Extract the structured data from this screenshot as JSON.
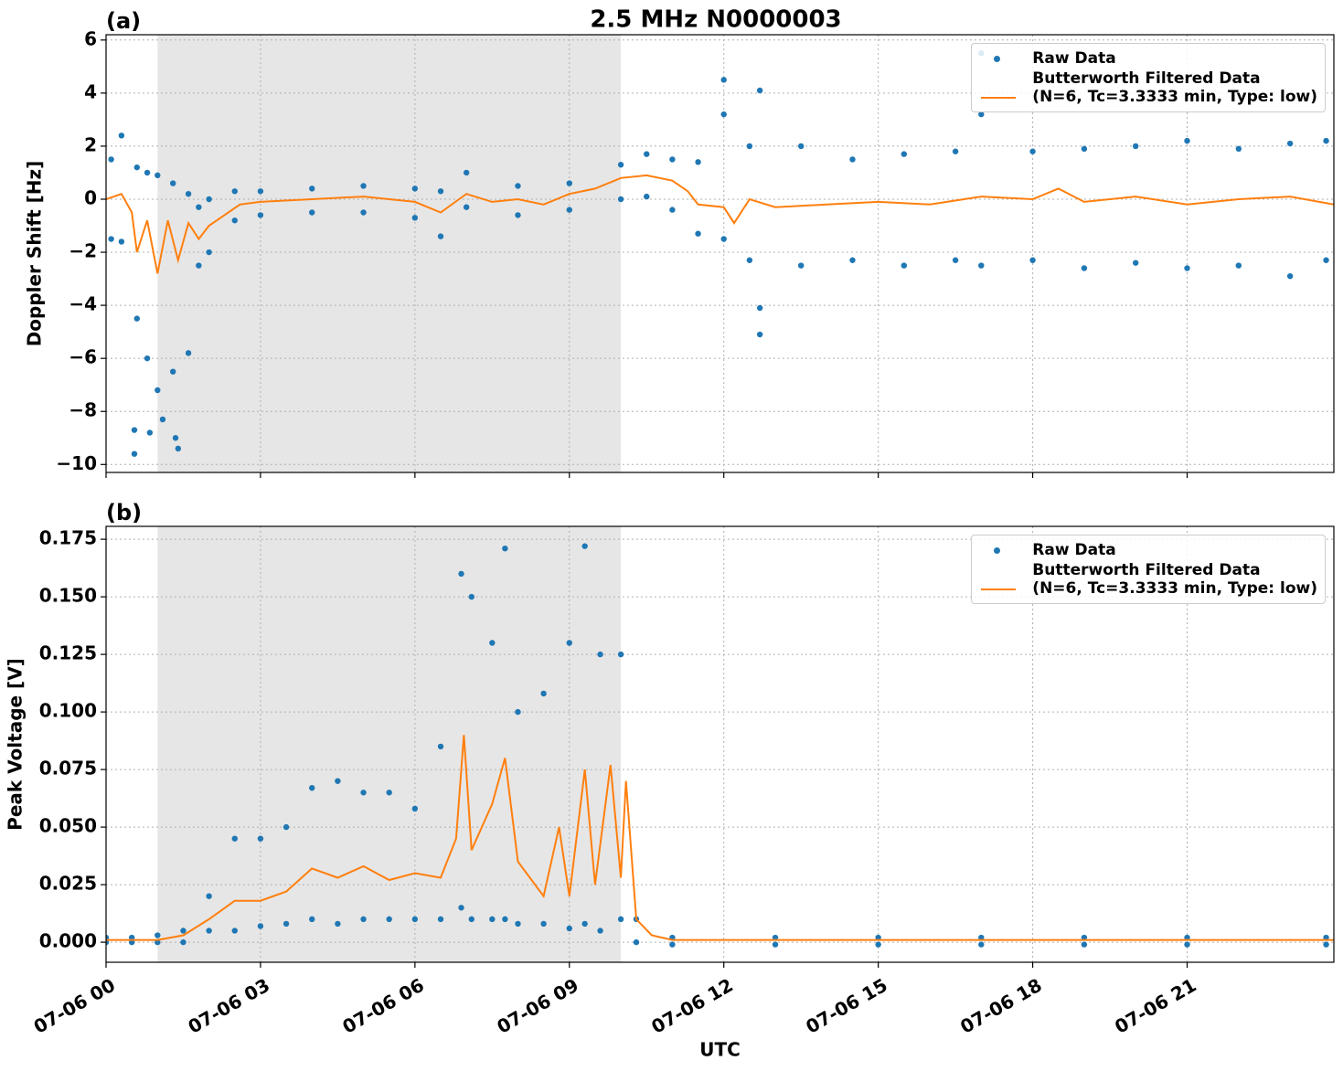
{
  "title": "2.5 MHz N0000003",
  "chart_data": [
    {
      "type": "scatter-line",
      "panel_label": "(a)",
      "ylabel": "Doppler Shift [Hz]",
      "xlim": [
        0,
        23.85
      ],
      "ylim": [
        -10.3,
        6.2
      ],
      "xticks": [
        0,
        3,
        6,
        9,
        12,
        15,
        18,
        21
      ],
      "yticks": [
        {
          "value": -10,
          "label": "−10"
        },
        {
          "value": -8,
          "label": "−8"
        },
        {
          "value": -6,
          "label": "−6"
        },
        {
          "value": -4,
          "label": "−4"
        },
        {
          "value": -2,
          "label": "−2"
        },
        0,
        2,
        4,
        6
      ],
      "grid": true,
      "legend": "upper right",
      "shaded_span": [
        1.0,
        10.0
      ],
      "series": [
        {
          "name": "Raw Data",
          "style": "markers",
          "color": "#1f77b4",
          "x": [
            0.1,
            0.1,
            0.3,
            0.3,
            0.6,
            0.6,
            0.55,
            0.55,
            0.8,
            0.8,
            0.85,
            1.0,
            1.0,
            1.1,
            1.3,
            1.3,
            1.35,
            1.4,
            1.6,
            1.6,
            1.8,
            1.8,
            2.0,
            2.0,
            2.5,
            2.5,
            3.0,
            3.0,
            4.0,
            4.0,
            5.0,
            5.0,
            6.0,
            6.0,
            6.5,
            6.5,
            7.0,
            7.0,
            8.0,
            8.0,
            9.0,
            9.0,
            10.0,
            10.0,
            10.5,
            10.5,
            11.0,
            11.0,
            11.5,
            11.5,
            12.0,
            12.0,
            12.0,
            12.5,
            12.5,
            12.7,
            12.7,
            12.7,
            13.5,
            13.5,
            14.5,
            14.5,
            15.5,
            15.5,
            16.5,
            16.5,
            17.0,
            17.0,
            17.0,
            18.0,
            18.0,
            19.0,
            19.0,
            20.0,
            20.0,
            21.0,
            21.0,
            22.0,
            22.0,
            23.0,
            23.0,
            23.7,
            23.7
          ],
          "values": [
            1.5,
            -1.5,
            2.4,
            -1.6,
            1.2,
            -4.5,
            -9.6,
            -8.7,
            1.0,
            -6.0,
            -8.8,
            0.9,
            -7.2,
            -8.3,
            0.6,
            -6.5,
            -9.0,
            -9.4,
            0.2,
            -5.8,
            -0.3,
            -2.5,
            0.0,
            -2.0,
            0.3,
            -0.8,
            0.3,
            -0.6,
            0.4,
            -0.5,
            0.5,
            -0.5,
            0.4,
            -0.7,
            0.3,
            -1.4,
            1.0,
            -0.3,
            0.5,
            -0.6,
            0.6,
            -0.4,
            1.3,
            0.0,
            1.7,
            0.1,
            1.5,
            -0.4,
            1.4,
            -1.3,
            4.5,
            3.2,
            -1.5,
            2.0,
            -2.3,
            4.1,
            -5.1,
            -4.1,
            2.0,
            -2.5,
            1.5,
            -2.3,
            1.7,
            -2.5,
            1.8,
            -2.3,
            5.5,
            3.2,
            -2.5,
            1.8,
            -2.3,
            1.9,
            -2.6,
            2.0,
            -2.4,
            2.2,
            -2.6,
            1.9,
            -2.5,
            2.1,
            -2.9,
            2.2,
            -2.3
          ]
        },
        {
          "name": "Butterworth Filtered Data\n(N=6, Tc=3.3333 min, Type: low)",
          "style": "line",
          "color": "#ff7f0e",
          "x": [
            0,
            0.3,
            0.5,
            0.6,
            0.8,
            1.0,
            1.2,
            1.4,
            1.6,
            1.8,
            2.0,
            2.3,
            2.6,
            3,
            4,
            5,
            6,
            6.5,
            7,
            7.5,
            8,
            8.5,
            9,
            9.5,
            10,
            10.5,
            11,
            11.3,
            11.5,
            12,
            12.2,
            12.5,
            13,
            14,
            15,
            16,
            17,
            18,
            18.5,
            19,
            20,
            21,
            22,
            23,
            23.85
          ],
          "values": [
            0,
            0.2,
            -0.5,
            -2.0,
            -0.8,
            -2.8,
            -0.8,
            -2.3,
            -0.9,
            -1.5,
            -1.0,
            -0.6,
            -0.2,
            -0.1,
            0,
            0.1,
            -0.1,
            -0.5,
            0.2,
            -0.1,
            0,
            -0.2,
            0.2,
            0.4,
            0.8,
            0.9,
            0.7,
            0.3,
            -0.2,
            -0.3,
            -0.9,
            0,
            -0.3,
            -0.2,
            -0.1,
            -0.2,
            0.1,
            0,
            0.4,
            -0.1,
            0.1,
            -0.2,
            0,
            0.1,
            -0.2
          ]
        }
      ]
    },
    {
      "type": "scatter-line",
      "panel_label": "(b)",
      "ylabel": "Peak Voltage [V]",
      "xlabel": "UTC",
      "xlim": [
        0,
        23.85
      ],
      "ylim": [
        -0.0087,
        0.1806
      ],
      "xticks": [
        {
          "value": 0,
          "label": "07-06 00"
        },
        {
          "value": 3,
          "label": "07-06 03"
        },
        {
          "value": 6,
          "label": "07-06 06"
        },
        {
          "value": 9,
          "label": "07-06 09"
        },
        {
          "value": 12,
          "label": "07-06 12"
        },
        {
          "value": 15,
          "label": "07-06 15"
        },
        {
          "value": 18,
          "label": "07-06 18"
        },
        {
          "value": 21,
          "label": "07-06 21"
        }
      ],
      "yticks": [
        {
          "value": 0,
          "label": "0.000"
        },
        {
          "value": 0.025,
          "label": "0.025"
        },
        {
          "value": 0.05,
          "label": "0.050"
        },
        {
          "value": 0.075,
          "label": "0.075"
        },
        {
          "value": 0.1,
          "label": "0.100"
        },
        {
          "value": 0.125,
          "label": "0.125"
        },
        {
          "value": 0.15,
          "label": "0.150"
        },
        {
          "value": 0.175,
          "label": "0.175"
        }
      ],
      "grid": true,
      "legend": "upper right",
      "shaded_span": [
        1.0,
        10.0
      ],
      "series": [
        {
          "name": "Raw Data",
          "style": "markers",
          "color": "#1f77b4",
          "x": [
            0,
            0,
            0.5,
            0.5,
            1,
            1,
            1.5,
            1.5,
            2,
            2,
            2.5,
            2.5,
            3,
            3,
            3.5,
            3.5,
            4,
            4,
            4.5,
            4.5,
            5,
            5,
            5.5,
            5.5,
            6,
            6,
            6.5,
            6.5,
            6.9,
            6.9,
            7.1,
            7.1,
            7.5,
            7.5,
            7.75,
            7.75,
            8,
            8,
            8.5,
            8.5,
            9,
            9,
            9.3,
            9.3,
            9.6,
            9.6,
            10.0,
            10.0,
            10.3,
            10.3,
            11,
            11,
            13,
            13,
            15,
            15,
            17,
            17,
            19,
            19,
            21,
            21,
            23.7,
            23.7
          ],
          "values": [
            0.002,
            0,
            0.002,
            0,
            0.003,
            0,
            0.005,
            0,
            0.02,
            0.005,
            0.045,
            0.005,
            0.045,
            0.007,
            0.05,
            0.008,
            0.067,
            0.01,
            0.07,
            0.008,
            0.065,
            0.01,
            0.065,
            0.01,
            0.058,
            0.01,
            0.085,
            0.01,
            0.16,
            0.015,
            0.15,
            0.01,
            0.13,
            0.01,
            0.171,
            0.01,
            0.1,
            0.008,
            0.108,
            0.008,
            0.13,
            0.006,
            0.172,
            0.008,
            0.125,
            0.005,
            0.125,
            0.01,
            0.01,
            0,
            0.002,
            -0.001,
            0.002,
            -0.001,
            0.002,
            -0.001,
            0.002,
            -0.001,
            0.002,
            -0.001,
            0.002,
            -0.001,
            0.002,
            -0.001
          ]
        },
        {
          "name": "Butterworth Filtered Data\n(N=6, Tc=3.3333 min, Type: low)",
          "style": "line",
          "color": "#ff7f0e",
          "x": [
            0,
            1,
            1.5,
            2,
            2.5,
            3,
            3.5,
            4,
            4.5,
            5,
            5.5,
            6,
            6.5,
            6.8,
            6.95,
            7.1,
            7.5,
            7.75,
            8,
            8.5,
            8.8,
            9,
            9.3,
            9.5,
            9.8,
            10,
            10.1,
            10.3,
            10.6,
            11,
            23.85
          ],
          "values": [
            0.001,
            0.001,
            0.003,
            0.01,
            0.018,
            0.018,
            0.022,
            0.032,
            0.028,
            0.033,
            0.027,
            0.03,
            0.028,
            0.045,
            0.09,
            0.04,
            0.06,
            0.08,
            0.035,
            0.02,
            0.05,
            0.02,
            0.075,
            0.025,
            0.077,
            0.028,
            0.07,
            0.01,
            0.003,
            0.001,
            0.001
          ]
        }
      ]
    }
  ]
}
